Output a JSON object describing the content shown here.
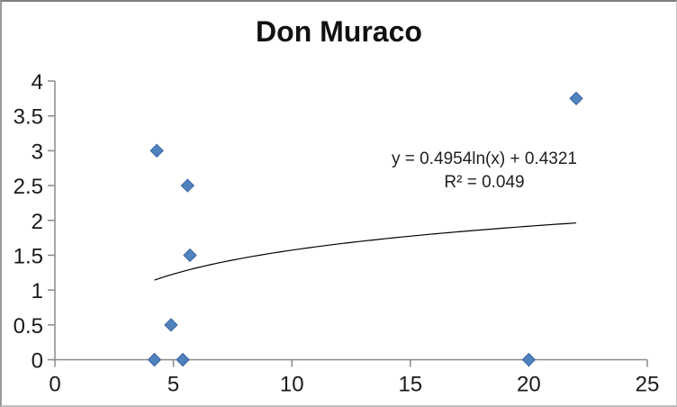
{
  "chart_data": {
    "type": "scatter",
    "title": "Don Muraco",
    "points": [
      {
        "x": 4.3,
        "y": 3
      },
      {
        "x": 5.6,
        "y": 2.5
      },
      {
        "x": 5.7,
        "y": 1.5
      },
      {
        "x": 4.9,
        "y": 0.5
      },
      {
        "x": 4.2,
        "y": 0
      },
      {
        "x": 5.4,
        "y": 0
      },
      {
        "x": 20,
        "y": 0
      },
      {
        "x": 22,
        "y": 3.75
      }
    ],
    "trendline": {
      "type": "logarithmic",
      "a": 0.4954,
      "b": 0.4321,
      "x_start": 4.2,
      "x_end": 22,
      "equation_label": "y = 0.4954ln(x) + 0.4321",
      "r2_label": "R² = 0.049"
    },
    "xlim": [
      0,
      25
    ],
    "ylim": [
      0,
      4
    ],
    "xticks": [
      0,
      5,
      10,
      15,
      20,
      25
    ],
    "yticks": [
      0,
      0.5,
      1,
      1.5,
      2,
      2.5,
      3,
      3.5,
      4
    ],
    "grid": false,
    "legend": false,
    "xlabel": "",
    "ylabel": "",
    "marker": {
      "shape": "diamond",
      "size": 14,
      "fill_color": "#4F81BD",
      "border_color": "#3A67A4"
    },
    "colors": {
      "trendline": "#000000",
      "axis": "#8A8A8A",
      "tick_text": "#1A1A1A",
      "title_text": "#111111",
      "annotation_text": "#1F1F1F"
    }
  }
}
